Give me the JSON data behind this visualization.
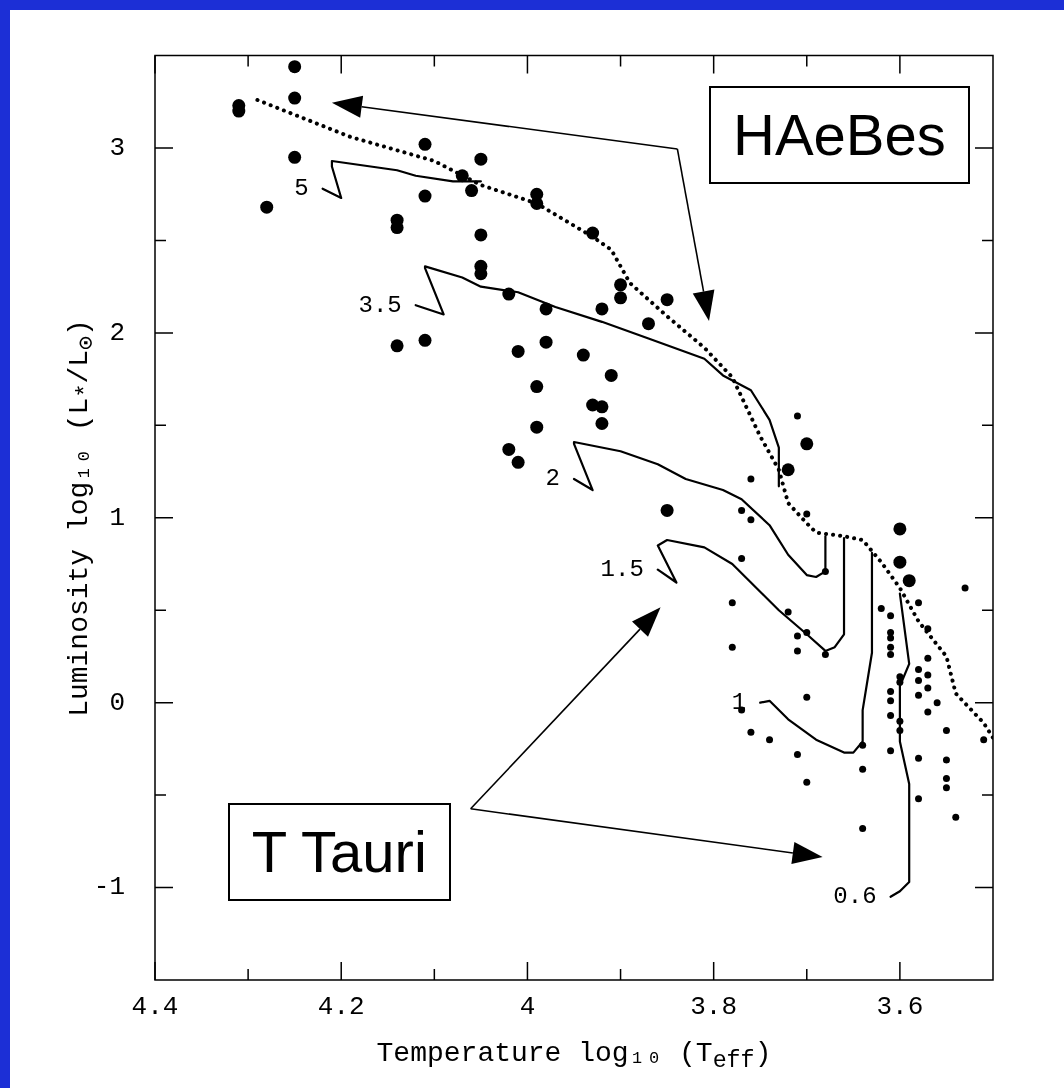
{
  "chart_data": {
    "type": "line",
    "xlabel": "Temperature log₁₀ (T$_{eff}$)",
    "ylabel": "Luminosity log₁₀ (L$_{*}$/L$_{⊙}$)",
    "xlim": [
      4.4,
      3.5
    ],
    "xticks": [
      4.4,
      {
        "value": 4.3,
        "label": null
      },
      4.2,
      {
        "value": 4.1,
        "label": null
      },
      4,
      {
        "value": 3.9,
        "label": null
      },
      3.8,
      {
        "value": 3.7,
        "label": null
      },
      3.6
    ],
    "ylim": [
      -1.5,
      3.5
    ],
    "yticks": [
      -1,
      {
        "value": -0.5,
        "label": null
      },
      0,
      {
        "value": 0.5,
        "label": null
      },
      1,
      {
        "value": 1.5,
        "label": null
      },
      2,
      {
        "value": 2.5,
        "label": null
      },
      3
    ],
    "annotations": [
      "HAeBes",
      "T Tauri"
    ],
    "series": [
      {
        "type": "line",
        "line_style": "dotted",
        "color": "#000000",
        "x": [
          4.29,
          4.19,
          4.1,
          4.05,
          3.99,
          3.93,
          3.91,
          3.89,
          3.85,
          3.81,
          3.78,
          3.75,
          3.73,
          3.72,
          3.7,
          3.69,
          3.66,
          3.64,
          3.62,
          3.6,
          3.58,
          3.55,
          3.54,
          3.51,
          3.5
        ],
        "values": [
          3.26,
          3.06,
          2.93,
          2.8,
          2.7,
          2.52,
          2.45,
          2.27,
          2.09,
          1.92,
          1.76,
          1.44,
          1.26,
          1.08,
          0.97,
          0.92,
          0.9,
          0.88,
          0.76,
          0.62,
          0.44,
          0.25,
          0.05,
          -0.11,
          -0.19
        ]
      },
      {
        "type": "line",
        "name": "5",
        "line_style": "solid",
        "color": "#000000",
        "x": [
          4.22,
          4.2,
          4.21,
          4.21,
          4.14,
          4.12,
          4.08,
          4.05
        ],
        "values": [
          2.78,
          2.73,
          2.9,
          2.93,
          2.88,
          2.85,
          2.82,
          2.82
        ]
      },
      {
        "type": "line",
        "name": "3.5",
        "line_style": "solid",
        "color": "#000000",
        "x": [
          4.12,
          4.09,
          4.11,
          4.11,
          4.07,
          4.05,
          4.01,
          3.97,
          3.92,
          3.87,
          3.81,
          3.79,
          3.76,
          3.74,
          3.73,
          3.73
        ],
        "values": [
          2.15,
          2.1,
          2.35,
          2.36,
          2.3,
          2.25,
          2.22,
          2.14,
          2.06,
          1.97,
          1.86,
          1.77,
          1.69,
          1.53,
          1.38,
          1.17
        ]
      },
      {
        "type": "line",
        "name": "2",
        "line_style": "solid",
        "color": "#000000",
        "x": [
          3.95,
          3.93,
          3.95,
          3.95,
          3.9,
          3.86,
          3.83,
          3.79,
          3.77,
          3.74,
          3.72,
          3.7,
          3.69,
          3.68,
          3.68
        ],
        "values": [
          1.21,
          1.15,
          1.4,
          1.41,
          1.36,
          1.29,
          1.21,
          1.15,
          1.1,
          0.96,
          0.8,
          0.69,
          0.68,
          0.71,
          0.9
        ]
      },
      {
        "type": "line",
        "name": "1.5",
        "line_style": "solid",
        "color": "#000000",
        "x": [
          3.86,
          3.84,
          3.86,
          3.85,
          3.81,
          3.78,
          3.75,
          3.73,
          3.7,
          3.68,
          3.67,
          3.66,
          3.66,
          3.66
        ],
        "values": [
          0.72,
          0.65,
          0.85,
          0.88,
          0.84,
          0.75,
          0.6,
          0.5,
          0.37,
          0.28,
          0.3,
          0.37,
          0.87,
          0.89
        ]
      },
      {
        "type": "line",
        "name": "1",
        "line_style": "solid",
        "color": "#000000",
        "x": [
          3.75,
          3.74,
          3.72,
          3.69,
          3.66,
          3.65,
          3.64,
          3.64,
          3.63,
          3.63
        ],
        "values": [
          0,
          0.01,
          -0.09,
          -0.2,
          -0.27,
          -0.27,
          -0.21,
          -0.04,
          0.27,
          0.81
        ]
      },
      {
        "type": "line",
        "name": "0.6",
        "line_style": "solid",
        "color": "#000000",
        "x": [
          3.61,
          3.6,
          3.59,
          3.59,
          3.59,
          3.6,
          3.6,
          3.6,
          3.59,
          3.6
        ],
        "values": [
          -1.05,
          -1.02,
          -0.97,
          -0.75,
          -0.44,
          -0.21,
          -0.04,
          0.09,
          0.21,
          0.59
        ]
      },
      {
        "type": "scatter",
        "marker": "circle",
        "color": "#000000",
        "x": [
          4.25,
          4.25,
          4.31,
          4.31,
          4.11,
          4.25,
          4.05,
          4.28,
          4.11,
          4.06,
          4.07,
          3.99,
          3.99,
          4.14,
          4.14,
          4.05,
          3.93,
          4.05,
          4.05,
          4.02,
          3.98,
          4.14,
          4.11,
          4.01,
          3.98,
          3.94,
          3.9,
          3.9,
          3.85,
          3.92,
          3.87,
          3.91,
          3.99,
          3.99,
          3.93,
          3.92,
          3.92,
          4.02,
          4.01,
          3.7,
          3.72,
          3.85,
          3.6,
          3.6,
          3.59
        ],
        "values": [
          3.44,
          3.27,
          3.23,
          3.2,
          3.02,
          2.95,
          2.94,
          2.68,
          2.74,
          2.77,
          2.85,
          2.75,
          2.7,
          2.61,
          2.57,
          2.53,
          2.54,
          2.36,
          2.32,
          2.21,
          2.13,
          1.93,
          1.96,
          1.9,
          1.95,
          1.88,
          2.26,
          2.19,
          2.18,
          2.13,
          2.05,
          1.77,
          1.71,
          1.49,
          1.61,
          1.51,
          1.6,
          1.37,
          1.3,
          1.4,
          1.26,
          1.04,
          0.94,
          0.76,
          0.66
        ]
      },
      {
        "type": "scatter",
        "marker": "circle",
        "color": "#000000",
        "x": [
          3.71,
          3.76,
          3.77,
          3.76,
          3.7,
          3.77,
          3.68,
          3.78,
          3.72,
          3.7,
          3.71,
          3.78,
          3.71,
          3.68,
          3.62,
          3.61,
          3.61,
          3.61,
          3.61,
          3.61,
          3.53,
          3.58,
          3.57,
          3.57,
          3.6,
          3.6,
          3.61,
          3.61,
          3.58,
          3.58,
          3.58,
          3.57,
          3.57,
          3.56,
          3.57,
          3.61,
          3.6,
          3.6,
          3.61,
          3.58,
          3.55,
          3.55,
          3.55,
          3.55,
          3.54,
          3.58,
          3.64,
          3.64,
          3.7,
          3.77,
          3.76,
          3.74,
          3.71,
          3.7,
          3.64,
          3.51
        ],
        "values": [
          1.55,
          1.21,
          1.04,
          0.99,
          1.02,
          0.78,
          0.71,
          0.54,
          0.49,
          0.38,
          0.36,
          0.3,
          0.28,
          0.26,
          0.51,
          0.47,
          0.38,
          0.35,
          0.3,
          0.26,
          0.62,
          0.54,
          0.4,
          0.24,
          0.14,
          0.11,
          0.06,
          0.01,
          0.18,
          0.12,
          0.04,
          0.15,
          0.08,
          0,
          -0.05,
          -0.07,
          -0.1,
          -0.15,
          -0.26,
          -0.3,
          -0.15,
          -0.31,
          -0.41,
          -0.46,
          -0.62,
          -0.52,
          -0.36,
          -0.23,
          0.03,
          -0.04,
          -0.16,
          -0.2,
          -0.28,
          -0.43,
          -0.68,
          -0.2
        ]
      }
    ]
  }
}
